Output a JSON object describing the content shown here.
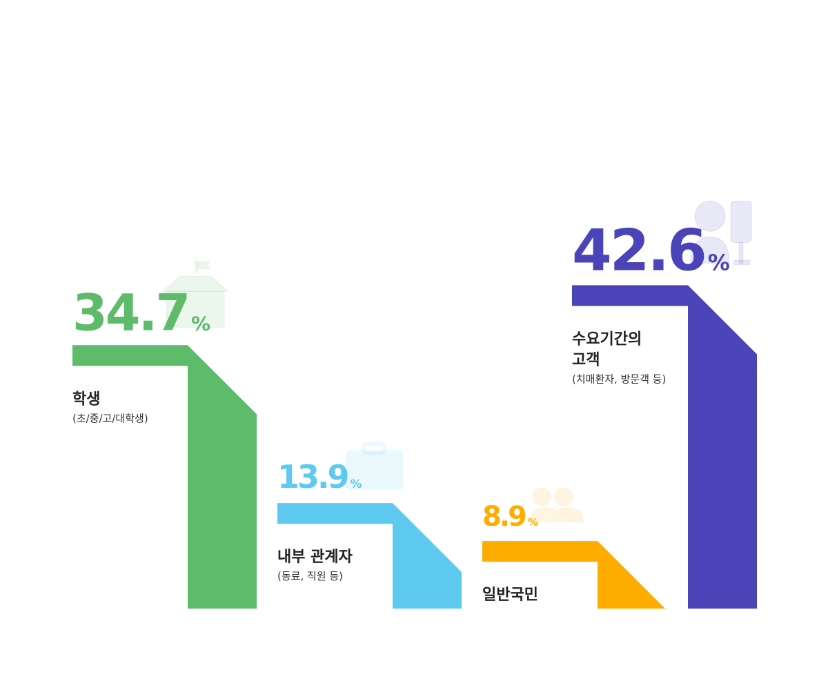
{
  "chart_data": {
    "type": "bar",
    "unit": "%",
    "categories": [
      {
        "label": "학생",
        "sublabel": "(초/중/고/대학생)",
        "value": 34.7,
        "value_text": "34.7",
        "color": "#5EBB6A",
        "icon": "school-icon"
      },
      {
        "label": "내부 관계자",
        "sublabel": "(동료, 직원 등)",
        "value": 13.9,
        "value_text": "13.9",
        "color": "#5ECAF0",
        "icon": "id-card-icon"
      },
      {
        "label": "일반국민",
        "sublabel": "",
        "value": 8.9,
        "value_text": "8.9",
        "color": "#FFAC00",
        "icon": "people-icon"
      },
      {
        "label": "수요기간의 고객",
        "label_lines": [
          "수요기간의",
          "고객"
        ],
        "sublabel": "(치매환자, 방문객 등)",
        "value": 42.6,
        "value_text": "42.6",
        "color": "#4B44B8",
        "icon": "patient-iv-icon"
      }
    ]
  }
}
